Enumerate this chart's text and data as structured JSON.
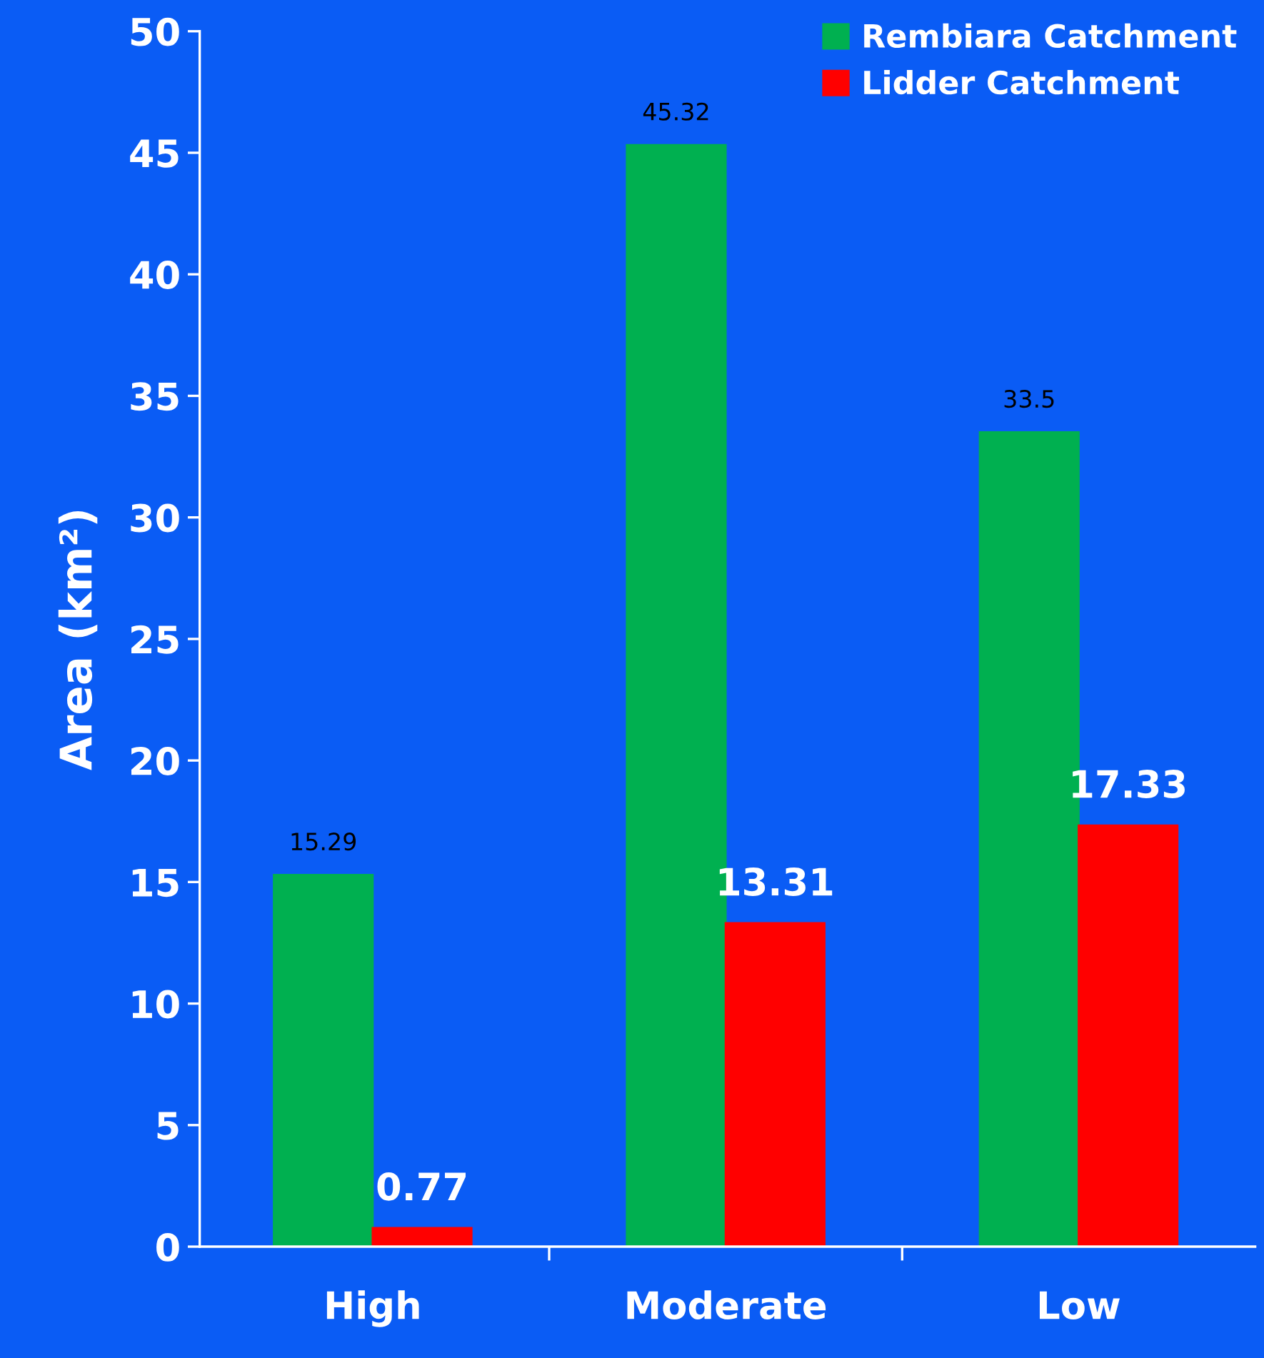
{
  "chart_data": {
    "type": "bar",
    "ylabel": "Area (km²)",
    "categories": [
      "High",
      "Moderate",
      "Low"
    ],
    "series": [
      {
        "name": "Rembiara Catchment",
        "color": "#00b050",
        "values": [
          15.29,
          45.32,
          33.5
        ]
      },
      {
        "name": "Lidder Catchment",
        "color": "#ff0000",
        "values": [
          0.77,
          13.31,
          17.33
        ]
      }
    ],
    "ylim": [
      0,
      50
    ],
    "yticks": [
      0,
      5,
      10,
      15,
      20,
      25,
      30,
      35,
      40,
      45,
      50
    ],
    "grid": false,
    "legend": "top right",
    "data_labels": true
  }
}
